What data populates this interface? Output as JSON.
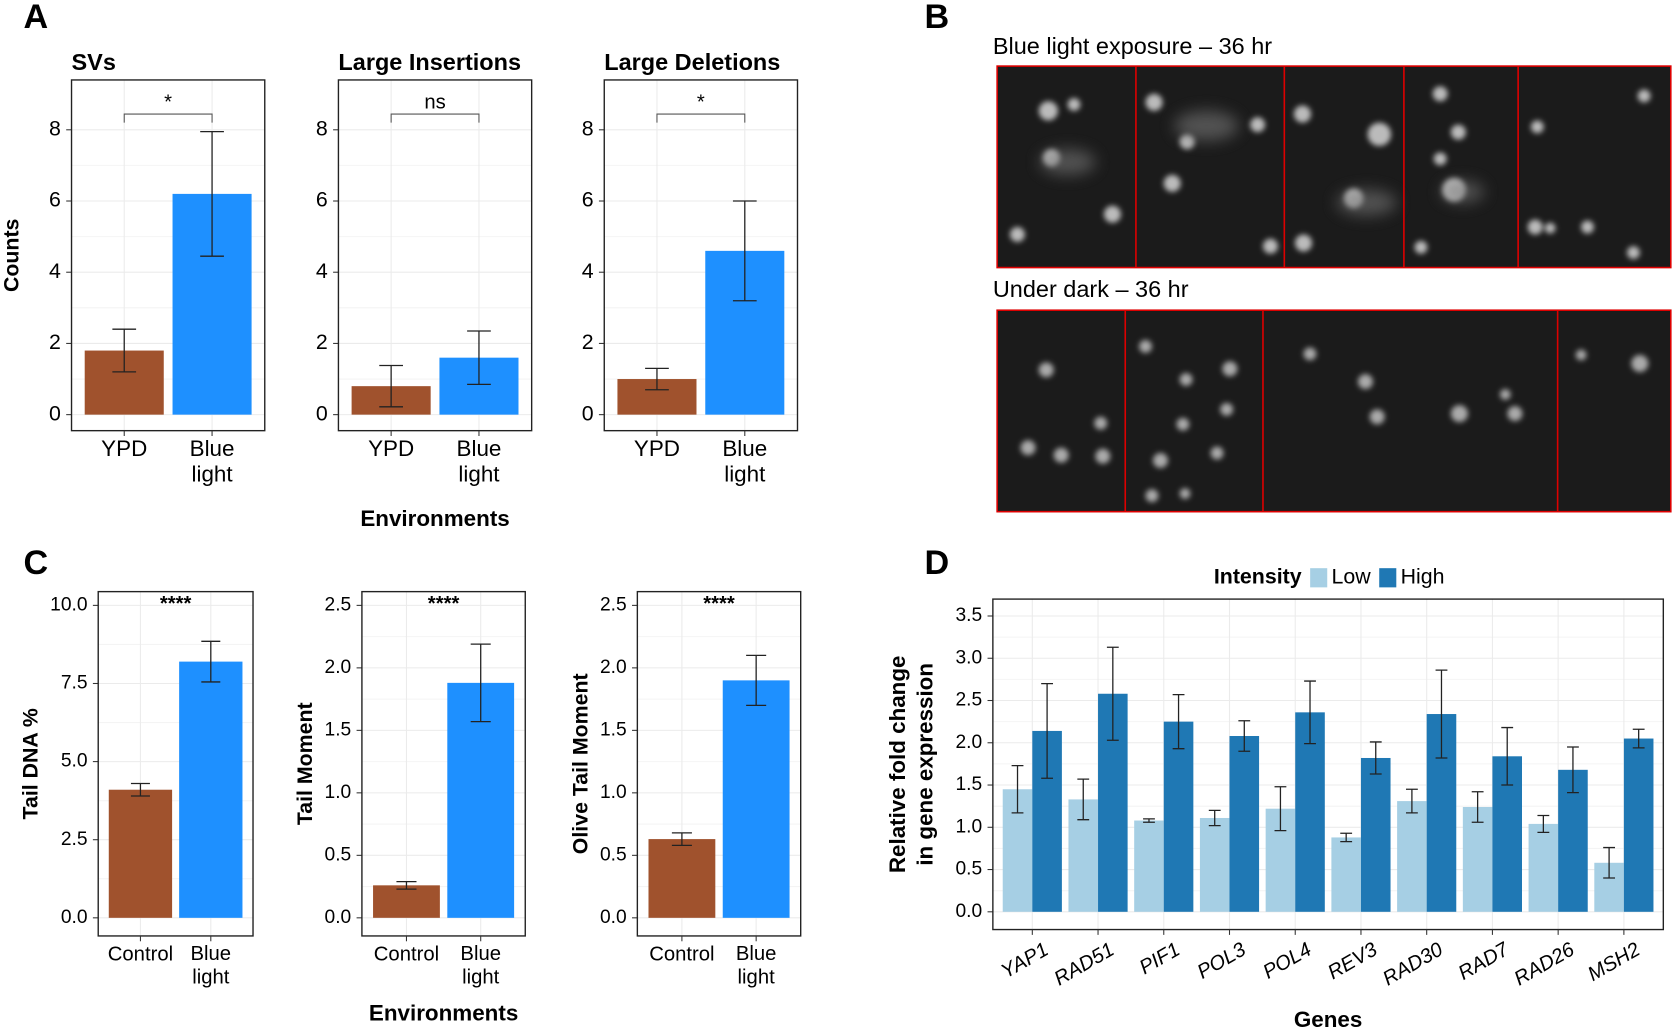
{
  "panel_labels": [
    "A",
    "B",
    "C",
    "D"
  ],
  "images": [
    {
      "caption": "Blue light exposure – 36 hr"
    },
    {
      "caption": "Under dark – 36 hr"
    }
  ],
  "chart_data": [
    {
      "type": "bar",
      "title": "SVs",
      "ylabel": "Counts",
      "categories": [
        "YPD",
        "Blue light"
      ],
      "values": [
        1.8,
        6.2
      ],
      "errors": [
        0.6,
        1.75
      ],
      "colors": [
        "#a0522d",
        "#1e90ff"
      ],
      "significance": "*",
      "ylim": [
        -0.45,
        9.4
      ],
      "yticks": [
        0,
        2,
        4,
        6,
        8
      ],
      "grid": true
    },
    {
      "type": "bar",
      "title": "Large Insertions",
      "xlabel": "Environments",
      "categories": [
        "YPD",
        "Blue light"
      ],
      "values": [
        0.8,
        1.6
      ],
      "errors": [
        0.58,
        0.75
      ],
      "colors": [
        "#a0522d",
        "#1e90ff"
      ],
      "significance": "ns",
      "ylim": [
        -0.45,
        9.4
      ],
      "yticks": [
        0,
        2,
        4,
        6,
        8
      ],
      "grid": true
    },
    {
      "type": "bar",
      "title": "Large Deletions",
      "categories": [
        "YPD",
        "Blue light"
      ],
      "values": [
        1.0,
        4.6
      ],
      "errors": [
        0.3,
        1.4
      ],
      "colors": [
        "#a0522d",
        "#1e90ff"
      ],
      "significance": "*",
      "ylim": [
        -0.45,
        9.4
      ],
      "yticks": [
        0,
        2,
        4,
        6,
        8
      ],
      "grid": true
    },
    {
      "type": "bar",
      "ylabel": "Tail DNA %",
      "categories": [
        "Control",
        "Blue light"
      ],
      "values": [
        4.1,
        8.2
      ],
      "errors": [
        0.2,
        0.65
      ],
      "colors": [
        "#a0522d",
        "#1e90ff"
      ],
      "significance": "****",
      "ylim": [
        -0.58,
        10.44
      ],
      "yticks": [
        {
          "value": 0,
          "label": "0.0"
        },
        {
          "value": 2.5,
          "label": "2.5"
        },
        {
          "value": 5,
          "label": "5.0"
        },
        {
          "value": 7.5,
          "label": "7.5"
        },
        {
          "value": 10,
          "label": "10.0"
        }
      ],
      "grid": true
    },
    {
      "type": "bar",
      "ylabel": "Tail Moment",
      "xlabel": "Environments",
      "categories": [
        "Control",
        "Blue light"
      ],
      "values": [
        0.26,
        1.88
      ],
      "errors": [
        0.03,
        0.31
      ],
      "colors": [
        "#a0522d",
        "#1e90ff"
      ],
      "significance": "****",
      "ylim": [
        -0.145,
        2.61
      ],
      "yticks": [
        {
          "value": 0,
          "label": "0.0"
        },
        0.5,
        {
          "value": 1,
          "label": "1.0"
        },
        1.5,
        {
          "value": 2,
          "label": "2.0"
        },
        2.5
      ],
      "grid": true
    },
    {
      "type": "bar",
      "ylabel": "Olive Tail Moment",
      "categories": [
        "Control",
        "Blue light"
      ],
      "values": [
        0.63,
        1.9
      ],
      "errors": [
        0.05,
        0.2
      ],
      "colors": [
        "#a0522d",
        "#1e90ff"
      ],
      "significance": "****",
      "ylim": [
        -0.145,
        2.61
      ],
      "yticks": [
        {
          "value": 0,
          "label": "0.0"
        },
        0.5,
        {
          "value": 1,
          "label": "1.0"
        },
        1.5,
        {
          "value": 2,
          "label": "2.0"
        },
        2.5
      ],
      "grid": true
    },
    {
      "type": "bar",
      "ylabel": "Relative fold change in gene expression",
      "xlabel": "Genes",
      "legend_title": "Intensity",
      "legend_position": "top",
      "categories": [
        "YAP1",
        "RAD51",
        "PIF1",
        "POL3",
        "POL4",
        "REV3",
        "RAD30",
        "RAD7",
        "RAD26",
        "MSH2"
      ],
      "series": [
        {
          "name": "Low",
          "color": "#a6cfe4",
          "values": [
            1.45,
            1.33,
            1.08,
            1.11,
            1.22,
            0.88,
            1.31,
            1.24,
            1.04,
            0.58
          ],
          "errors": [
            0.28,
            0.24,
            0.02,
            0.09,
            0.26,
            0.05,
            0.14,
            0.18,
            0.1,
            0.18
          ]
        },
        {
          "name": "High",
          "color": "#1f78b4",
          "values": [
            2.14,
            2.58,
            2.25,
            2.08,
            2.36,
            1.82,
            2.34,
            1.84,
            1.68,
            2.05
          ],
          "errors": [
            0.56,
            0.55,
            0.32,
            0.18,
            0.37,
            0.19,
            0.52,
            0.34,
            0.27,
            0.11
          ]
        }
      ],
      "ylim": [
        -0.21,
        3.7
      ],
      "yticks": [
        {
          "value": 0,
          "label": "0.0"
        },
        0.5,
        {
          "value": 1,
          "label": "1.0"
        },
        1.5,
        {
          "value": 2,
          "label": "2.0"
        },
        2.5,
        {
          "value": 3,
          "label": "3.0"
        },
        3.5
      ],
      "grid": true
    }
  ]
}
